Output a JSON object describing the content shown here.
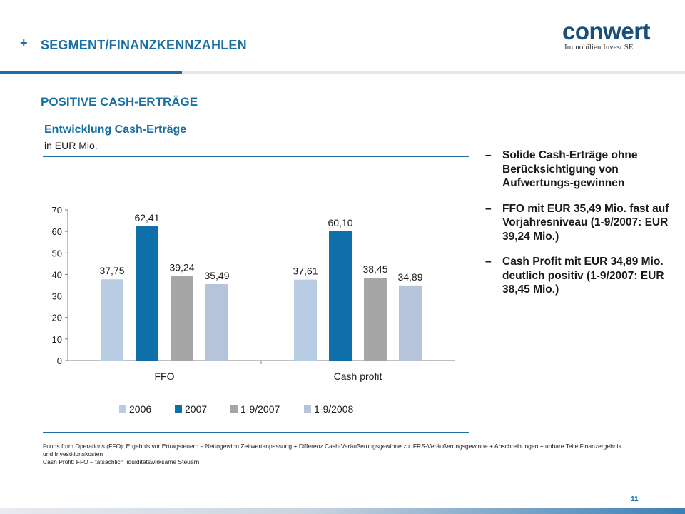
{
  "header": {
    "plus": "+",
    "title": "SEGMENT/FINANZKENNZAHLEN"
  },
  "logo": {
    "word": "conwert",
    "subtitle": "Immobilien Invest SE"
  },
  "section_title": "POSITIVE CASH-ERTRÄGE",
  "chart_heading": {
    "title": "Entwicklung Cash-Erträge",
    "unit": "in EUR Mio."
  },
  "chart_data": {
    "type": "bar",
    "title": "Entwicklung Cash-Erträge",
    "xlabel": "",
    "ylabel": "",
    "ylim": [
      0,
      70
    ],
    "yticks": [
      0,
      10,
      20,
      30,
      40,
      50,
      60,
      70
    ],
    "categories": [
      "FFO",
      "Cash profit"
    ],
    "series": [
      {
        "name": "2006",
        "color": "#b8cde4",
        "values": [
          37.75,
          37.61
        ],
        "labels": [
          "37,75",
          "37,61"
        ]
      },
      {
        "name": "2007",
        "color": "#0f6fa8",
        "values": [
          62.41,
          60.1
        ],
        "labels": [
          "62,41",
          "60,10"
        ]
      },
      {
        "name": "1-9/2007",
        "color": "#a6a6a6",
        "values": [
          39.24,
          38.45
        ],
        "labels": [
          "39,24",
          "38,45"
        ]
      },
      {
        "name": "1-9/2008",
        "color": "#b5c4db",
        "values": [
          35.49,
          34.89
        ],
        "labels": [
          "35,49",
          "34,89"
        ]
      }
    ],
    "legend": "bottom",
    "grid": false
  },
  "bullets": [
    {
      "dash": "–",
      "text": "Solide Cash-Erträge ohne Berücksichtigung von Aufwertungs-gewinnen"
    },
    {
      "dash": "–",
      "text": "FFO mit EUR 35,49 Mio. fast auf Vorjahresniveau (1-9/2007: EUR 39,24 Mio.)"
    },
    {
      "dash": "–",
      "text": "Cash Profit mit EUR 34,89 Mio. deutlich positiv (1-9/2007: EUR 38,45 Mio.)"
    }
  ],
  "footnote": {
    "line1": "Funds from Operations (FFO): Ergebnis vor Ertragsteuern – Nettogewinn Zeitwertanpassung + Differenz Cash-Veräußerungsgewinne zu IFRS-Veräußerungsgewinne + Abschreibungen + unbare Teile Finanzergebnis und Investitionskosten",
    "line2": "Cash Profit: FFO – tatsächlich liquiditätswirksame Steuern"
  },
  "page_number": "11"
}
